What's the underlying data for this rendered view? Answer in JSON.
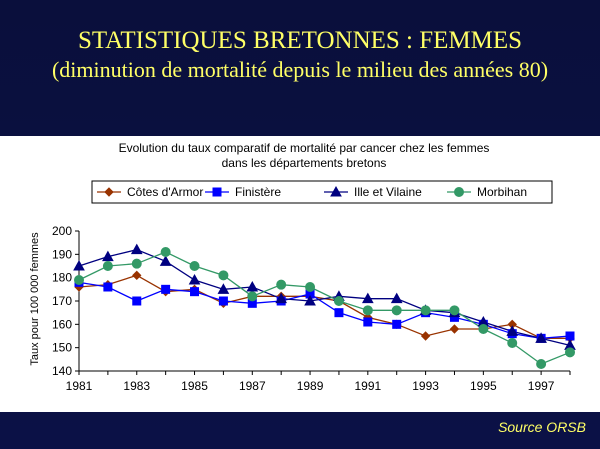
{
  "slide": {
    "title": "STATISTIQUES BRETONNES : FEMMES",
    "subtitle": "(diminution de mortalité depuis le milieu des années 80)",
    "source": "Source ORSB"
  },
  "chart_data": {
    "type": "line",
    "title_line1": "Evolution du taux comparatif de mortalité par cancer  chez les femmes",
    "title_line2": "dans les départements bretons",
    "ylabel": "Taux pour 100 000 femmes",
    "xlabel": "",
    "x": [
      1981,
      1982,
      1983,
      1984,
      1985,
      1986,
      1987,
      1988,
      1989,
      1990,
      1991,
      1992,
      1993,
      1994,
      1995,
      1996,
      1997,
      1998
    ],
    "xticks": [
      "1981",
      "1983",
      "1985",
      "1987",
      "1989",
      "1991",
      "1993",
      "1995",
      "1997"
    ],
    "yticks": [
      "140",
      "150",
      "160",
      "170",
      "180",
      "190",
      "200"
    ],
    "ylim": [
      140,
      200
    ],
    "xlim": [
      1981,
      1998
    ],
    "grid": false,
    "legend": "top",
    "series": [
      {
        "name": "Côtes d'Armor",
        "color": "#993300",
        "marker": "diamond",
        "values": [
          176,
          177,
          181,
          174,
          175,
          169,
          172,
          172,
          172,
          170,
          163,
          160,
          155,
          158,
          158,
          160,
          154,
          154
        ]
      },
      {
        "name": "Finistère",
        "color": "#0000ff",
        "marker": "square",
        "values": [
          178,
          176,
          170,
          175,
          174,
          170,
          169,
          170,
          173,
          165,
          161,
          160,
          165,
          163,
          160,
          156,
          154,
          155
        ]
      },
      {
        "name": "Ille et Vilaine",
        "color": "#000080",
        "marker": "triangle",
        "values": [
          185,
          189,
          192,
          187,
          179,
          175,
          176,
          171,
          170,
          172,
          171,
          171,
          166,
          165,
          161,
          157,
          154,
          151
        ]
      },
      {
        "name": "Morbihan",
        "color": "#339966",
        "marker": "circle",
        "values": [
          179,
          185,
          186,
          191,
          185,
          181,
          172,
          177,
          176,
          170,
          166,
          166,
          166,
          166,
          158,
          152,
          143,
          148
        ]
      }
    ]
  }
}
